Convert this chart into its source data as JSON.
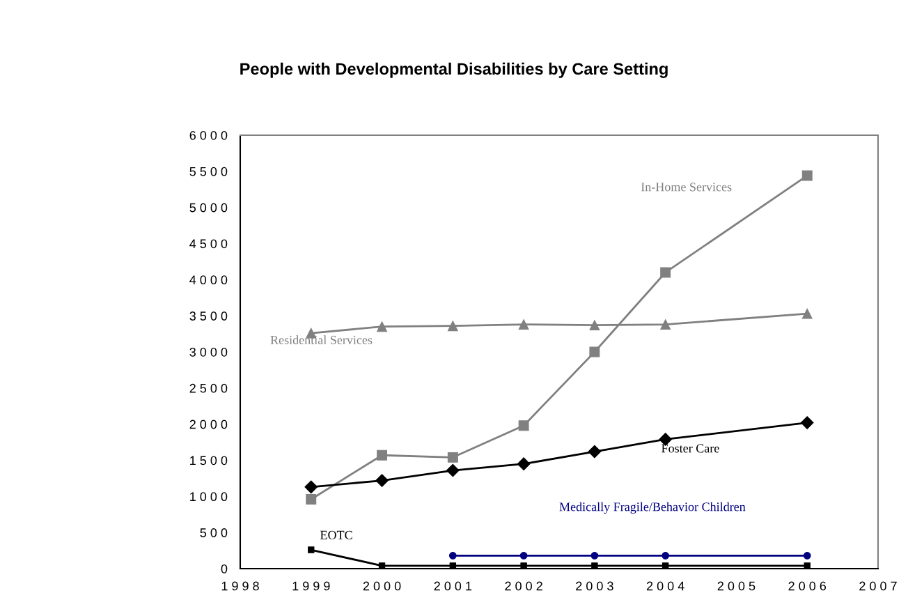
{
  "chart_data": {
    "type": "line",
    "title": "People with Developmental Disabilities by Care Setting",
    "xlim": [
      1998,
      2007
    ],
    "xticks": [
      1998,
      1999,
      2000,
      2001,
      2002,
      2003,
      2004,
      2005,
      2006,
      2007
    ],
    "ylim": [
      0,
      6000
    ],
    "yticks": [
      0,
      500,
      1000,
      1500,
      2000,
      2500,
      3000,
      3500,
      4000,
      4500,
      5000,
      5500,
      6000
    ],
    "grid": false,
    "legend": false,
    "series": [
      {
        "name": "Residential Services",
        "color": "#808080",
        "marker": "triangle",
        "x": [
          1999,
          2000,
          2001,
          2002,
          2003,
          2004,
          2006
        ],
        "values": [
          3260,
          3350,
          3360,
          3380,
          3370,
          3380,
          3530
        ]
      },
      {
        "name": "In-Home Services",
        "color": "#808080",
        "marker": "square",
        "x": [
          1999,
          2000,
          2001,
          2002,
          2003,
          2004,
          2006
        ],
        "values": [
          960,
          1570,
          1540,
          1980,
          3000,
          4100,
          5440
        ]
      },
      {
        "name": "Foster Care",
        "color": "#000000",
        "marker": "diamond",
        "x": [
          1999,
          2000,
          2001,
          2002,
          2003,
          2004,
          2006
        ],
        "values": [
          1130,
          1220,
          1360,
          1450,
          1620,
          1790,
          2020
        ]
      },
      {
        "name": "EOTC",
        "color": "#000000",
        "marker": "square",
        "x": [
          1999,
          2000,
          2001,
          2002,
          2003,
          2004,
          2006
        ],
        "values": [
          260,
          40,
          40,
          40,
          40,
          40,
          40
        ]
      },
      {
        "name": "Medically Fragile/Behavior Children",
        "color": "#000080",
        "marker": "circle",
        "x": [
          2001,
          2002,
          2003,
          2004,
          2006
        ],
        "values": [
          180,
          180,
          180,
          180,
          180
        ]
      }
    ]
  }
}
